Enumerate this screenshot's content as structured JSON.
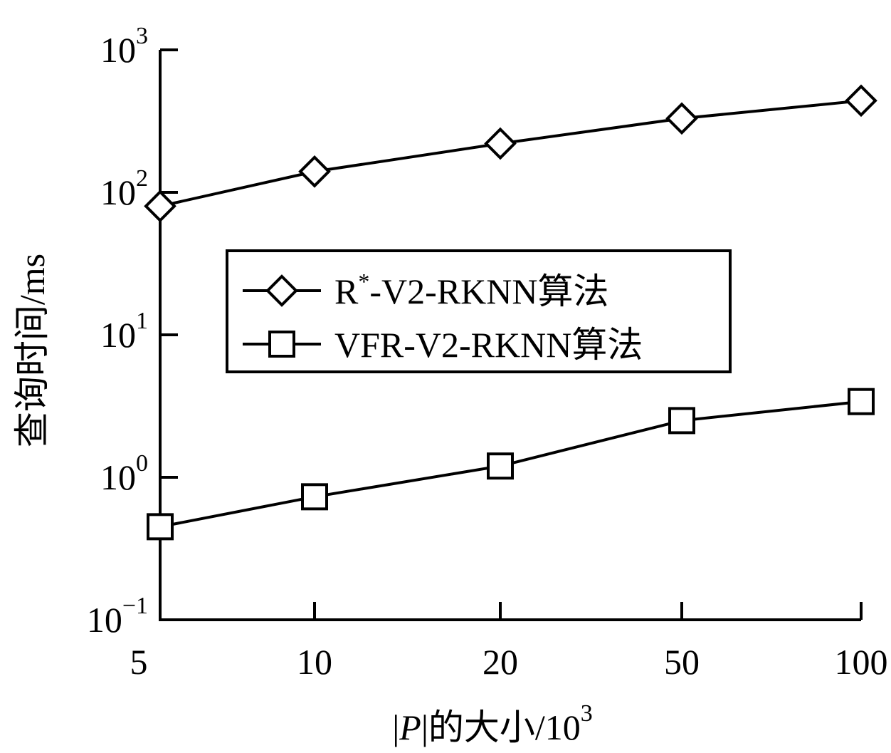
{
  "chart_data": {
    "type": "line",
    "xlabel": "|P|的大小/10³",
    "xlabel_parts": {
      "bar_left": "|",
      "var": "P",
      "bar_right": "|",
      "text": "的大小/10",
      "exp": "3"
    },
    "ylabel": "查询时间/ms",
    "x_scale": "log",
    "y_scale": "log",
    "xlim": [
      5,
      100
    ],
    "ylim": [
      0.1,
      1000
    ],
    "x_ticks": [
      5,
      10,
      20,
      50,
      100
    ],
    "x_tick_labels": [
      "5",
      "10",
      "20",
      "50",
      "100"
    ],
    "y_ticks": [
      0.1,
      1,
      10,
      100,
      1000
    ],
    "y_tick_labels": [
      {
        "base": "10",
        "exp": "−1"
      },
      {
        "base": "10",
        "exp": "0"
      },
      {
        "base": "10",
        "exp": "1"
      },
      {
        "base": "10",
        "exp": "2"
      },
      {
        "base": "10",
        "exp": "3"
      }
    ],
    "grid": false,
    "legend_placement": "center",
    "series": [
      {
        "name": "R*-V2-RKNN算法",
        "name_parts": {
          "pre": "R",
          "sup": "*",
          "post": "-V2-RKNN算法"
        },
        "marker": "diamond",
        "color": "#000000",
        "x": [
          5,
          10,
          20,
          50,
          100
        ],
        "y": [
          80,
          140,
          220,
          330,
          440
        ]
      },
      {
        "name": "VFR-V2-RKNN算法",
        "name_parts": {
          "pre": "VFR-V2-RKNN算法",
          "sup": "",
          "post": ""
        },
        "marker": "square",
        "color": "#000000",
        "x": [
          5,
          10,
          20,
          50,
          100
        ],
        "y": [
          0.45,
          0.73,
          1.2,
          2.5,
          3.4
        ]
      }
    ]
  }
}
